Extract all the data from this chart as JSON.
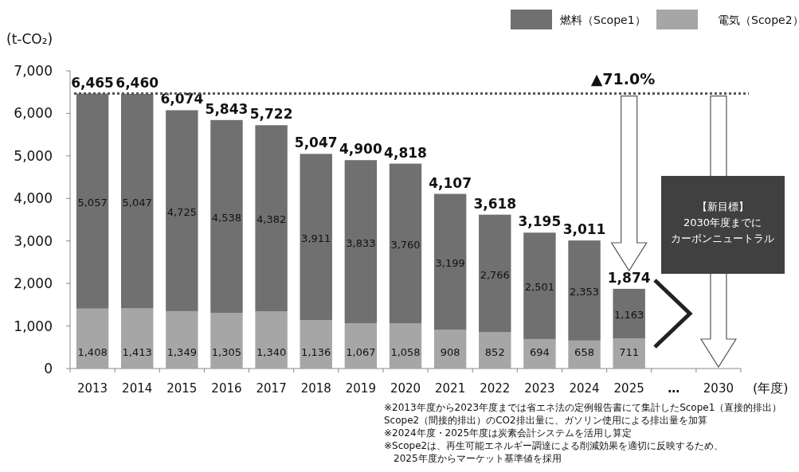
{
  "chart_data": {
    "type": "bar",
    "stacked": true,
    "ylabel": "(t-CO₂)",
    "xlabel": "(年度)",
    "categories": [
      "2013",
      "2014",
      "2015",
      "2016",
      "2017",
      "2018",
      "2019",
      "2020",
      "2021",
      "2022",
      "2023",
      "2024",
      "2025",
      "…",
      "2030"
    ],
    "series": [
      {
        "name": "電気（Scope2）",
        "color": "#a6a6a6",
        "values": [
          1408,
          1413,
          1349,
          1305,
          1340,
          1136,
          1067,
          1058,
          908,
          852,
          694,
          658,
          711,
          null,
          null
        ],
        "value_labels": [
          "1,408",
          "1,413",
          "1,349",
          "1,305",
          "1,340",
          "1,136",
          "1,067",
          "1,058",
          "908",
          "852",
          "694",
          "658",
          "711",
          null,
          null
        ]
      },
      {
        "name": "燃料（Scope1）",
        "color": "#707070",
        "values": [
          5057,
          5047,
          4725,
          4538,
          4382,
          3911,
          3833,
          3760,
          3199,
          2766,
          2501,
          2353,
          1163,
          null,
          null
        ],
        "value_labels": [
          "5,057",
          "5,047",
          "4,725",
          "4,538",
          "4,382",
          "3,911",
          "3,833",
          "3,760",
          "3,199",
          "2,766",
          "2,501",
          "2,353",
          "1,163",
          null,
          null
        ]
      }
    ],
    "totals": [
      "6,465",
      "6,460",
      "6,074",
      "5,843",
      "5,722",
      "5,047",
      "4,900",
      "4,818",
      "4,107",
      "3,618",
      "3,195",
      "3,011",
      "1,874",
      null,
      null
    ],
    "ylim": [
      0,
      7000
    ],
    "yticks": [
      {
        "value": 0,
        "label": "0"
      },
      {
        "value": 1000,
        "label": "1,000"
      },
      {
        "value": 2000,
        "label": "2,000"
      },
      {
        "value": 3000,
        "label": "3,000"
      },
      {
        "value": 4000,
        "label": "4,000"
      },
      {
        "value": 5000,
        "label": "5,000"
      },
      {
        "value": 6000,
        "label": "6,000"
      },
      {
        "value": 7000,
        "label": "7,000"
      }
    ],
    "ref_lines": [
      {
        "axis": "y",
        "value": 6465,
        "line_style": "dotted",
        "color": "#555555"
      }
    ],
    "legend": "top right",
    "grid": false,
    "annotations": [
      "▲71.0%",
      "【新目標】",
      "2030年度までに",
      "カーボンニュートラル",
      "※2013年度から2023年度までは省エネ法の定例報告書にて集計したScope1（直接的排出）",
      "Scope2（間接的排出）のCO2排出量に、ガソリン使用による排出量を加算",
      "※2024年度・2025年度は炭素会計システムを活用し算定",
      "※Scope2は、再生可能エネルギー調達による削減効果を適切に反映するため、",
      "　2025年度からマーケット基準値を採用"
    ]
  }
}
